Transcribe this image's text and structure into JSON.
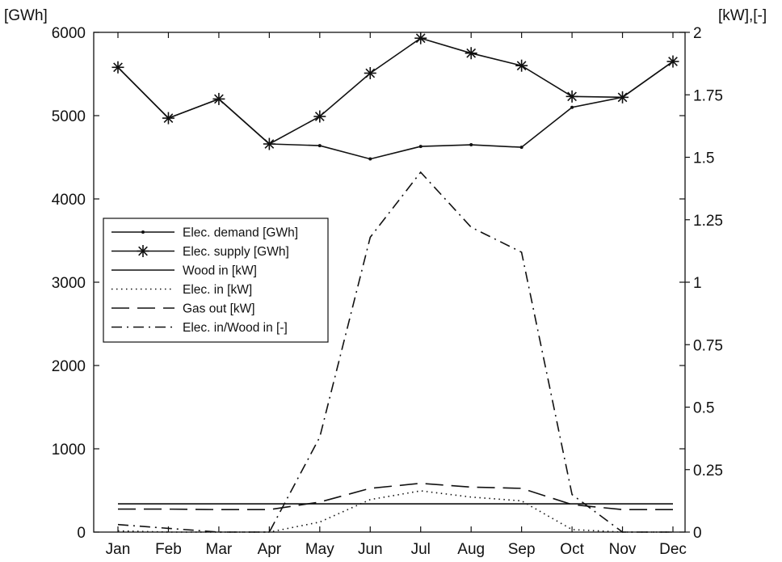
{
  "chart_data": {
    "type": "line",
    "left_axis_label": "[GWh]",
    "right_axis_label": "[kW],[-]",
    "categories": [
      "Jan",
      "Feb",
      "Mar",
      "Apr",
      "May",
      "Jun",
      "Jul",
      "Aug",
      "Sep",
      "Oct",
      "Nov",
      "Dec"
    ],
    "left_ylim": [
      0,
      6000
    ],
    "left_ticks": [
      "0",
      "1000",
      "2000",
      "3000",
      "4000",
      "5000",
      "6000"
    ],
    "right_ylim": [
      0,
      2
    ],
    "right_ticks": [
      "0",
      "0.25",
      "0.5",
      "0.75",
      "1",
      "1.25",
      "1.5",
      "1.75",
      "2"
    ],
    "grid": false,
    "legend_position": "middle-left",
    "series": [
      {
        "name": "Elec. demand [GWh]",
        "axis": "left",
        "style": "solid-dot",
        "values": [
          5580,
          4970,
          5200,
          4660,
          4640,
          4480,
          4630,
          4650,
          4620,
          5100,
          5220,
          5650
        ]
      },
      {
        "name": "Elec. supply [GWh]",
        "axis": "left",
        "style": "solid-star",
        "values": [
          5580,
          4970,
          5200,
          4660,
          4990,
          5510,
          5930,
          5750,
          5600,
          5230,
          5220,
          5650
        ]
      },
      {
        "name": "Wood in [kW]",
        "axis": "right",
        "style": "solid",
        "values": [
          0.113,
          0.113,
          0.113,
          0.113,
          0.113,
          0.113,
          0.113,
          0.113,
          0.113,
          0.113,
          0.113,
          0.113
        ]
      },
      {
        "name": "Elec. in [kW]",
        "axis": "right",
        "style": "dotted",
        "values": [
          0.005,
          0.0,
          0.0,
          0.0,
          0.04,
          0.13,
          0.165,
          0.14,
          0.125,
          0.01,
          0.0,
          0.0
        ]
      },
      {
        "name": "Gas out [kW]",
        "axis": "right",
        "style": "dashed",
        "values": [
          0.092,
          0.092,
          0.09,
          0.09,
          0.12,
          0.175,
          0.195,
          0.18,
          0.175,
          0.11,
          0.09,
          0.09
        ]
      },
      {
        "name": "Elec. in/Wood in [-]",
        "axis": "right",
        "style": "dashdot",
        "values": [
          0.03,
          0.015,
          0.0,
          0.0,
          0.38,
          1.18,
          1.44,
          1.22,
          1.12,
          0.15,
          0.0,
          0.0
        ]
      }
    ]
  }
}
